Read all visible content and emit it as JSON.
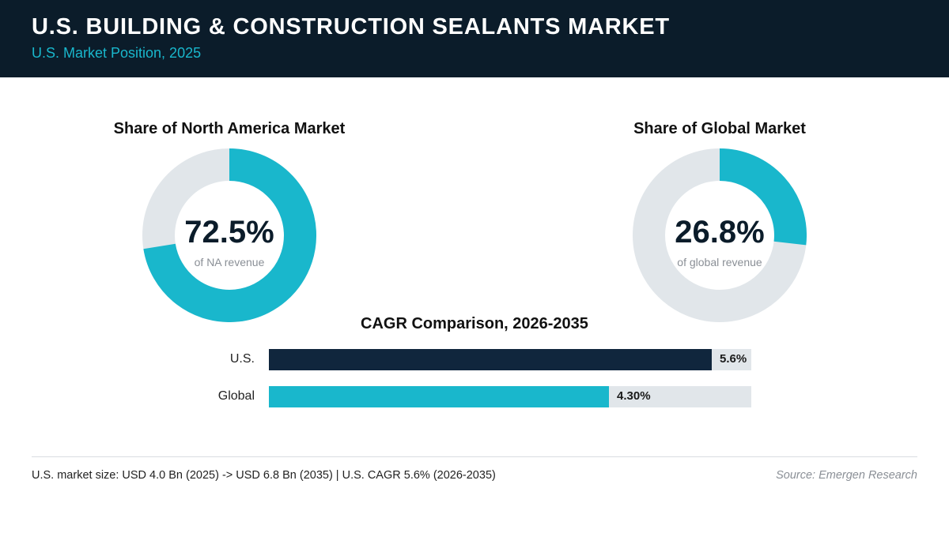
{
  "header": {
    "title": "U.S. BUILDING & CONSTRUCTION SEALANTS MARKET",
    "subtitle": "U.S. Market Position, 2025"
  },
  "colors": {
    "header_bg": "#0b1c2a",
    "accent": "#19b7cc",
    "navy": "#10263d",
    "track": "#e1e6ea"
  },
  "chart_data": [
    {
      "type": "pie",
      "title": "Share of North America Market",
      "value": 72.5,
      "value_label": "72.5%",
      "caption": "of NA revenue"
    },
    {
      "type": "pie",
      "title": "Share of Global Market",
      "value": 26.8,
      "value_label": "26.8%",
      "caption": "of global revenue"
    },
    {
      "type": "bar",
      "title": "CAGR Comparison, 2026-2035",
      "categories": [
        "U.S.",
        "Global"
      ],
      "values": [
        5.6,
        4.3
      ],
      "value_labels": [
        "5.6%",
        "4.30%"
      ],
      "xlim": [
        0,
        6.1
      ]
    }
  ],
  "footer": {
    "note": "U.S. market size: USD 4.0 Bn (2025) -> USD 6.8 Bn (2035)  |  U.S. CAGR 5.6% (2026-2035)",
    "source": "Source: Emergen Research"
  }
}
